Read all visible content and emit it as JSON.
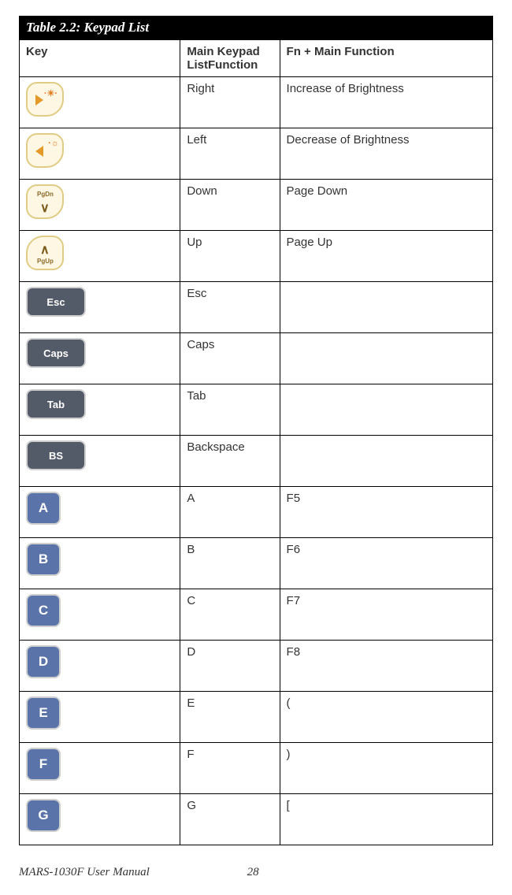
{
  "table": {
    "title": "Table 2.2: Keypad List",
    "headers": {
      "key": "Key",
      "main": "Main Keypad ListFunction",
      "fn": "Fn + Main Function"
    },
    "rows": [
      {
        "icon": "right-bright",
        "main": "Right",
        "fn": "Increase of Brightness"
      },
      {
        "icon": "left-bright",
        "main": "Left",
        "fn": "Decrease of Brightness"
      },
      {
        "icon": "pgdn",
        "main": "Down",
        "fn": "Page Down"
      },
      {
        "icon": "pgup",
        "main": "Up",
        "fn": "Page Up"
      },
      {
        "icon": "esc",
        "main": "Esc",
        "fn": ""
      },
      {
        "icon": "caps",
        "main": "Caps",
        "fn": ""
      },
      {
        "icon": "tab",
        "main": "Tab",
        "fn": ""
      },
      {
        "icon": "bs",
        "main": "Backspace",
        "fn": ""
      },
      {
        "icon": "A",
        "main": "A",
        "fn": "F5"
      },
      {
        "icon": "B",
        "main": "B",
        "fn": "F6"
      },
      {
        "icon": "C",
        "main": "C",
        "fn": "F7"
      },
      {
        "icon": "D",
        "main": "D",
        "fn": "F8"
      },
      {
        "icon": "E",
        "main": "E",
        "fn": "("
      },
      {
        "icon": "F",
        "main": "F",
        "fn": ")"
      },
      {
        "icon": "G",
        "main": "G",
        "fn": "["
      }
    ],
    "icon_labels": {
      "esc": "Esc",
      "caps": "Caps",
      "tab": "Tab",
      "bs": "BS",
      "pgdn": "PgDn",
      "pgup": "PgUp"
    }
  },
  "footer": {
    "manual": "MARS-1030F User Manual",
    "page": "28"
  },
  "colors": {
    "title_bg": "#000000",
    "title_fg": "#ffffff",
    "border": "#000000",
    "key_cream_bg": "#fdf7e3",
    "key_cream_border": "#e0cc84",
    "key_dark_bg": "#535a68",
    "key_blue_bg": "#5a73a8",
    "key_border_light": "#cfcfcf",
    "arrow_orange": "#e39a2a"
  }
}
